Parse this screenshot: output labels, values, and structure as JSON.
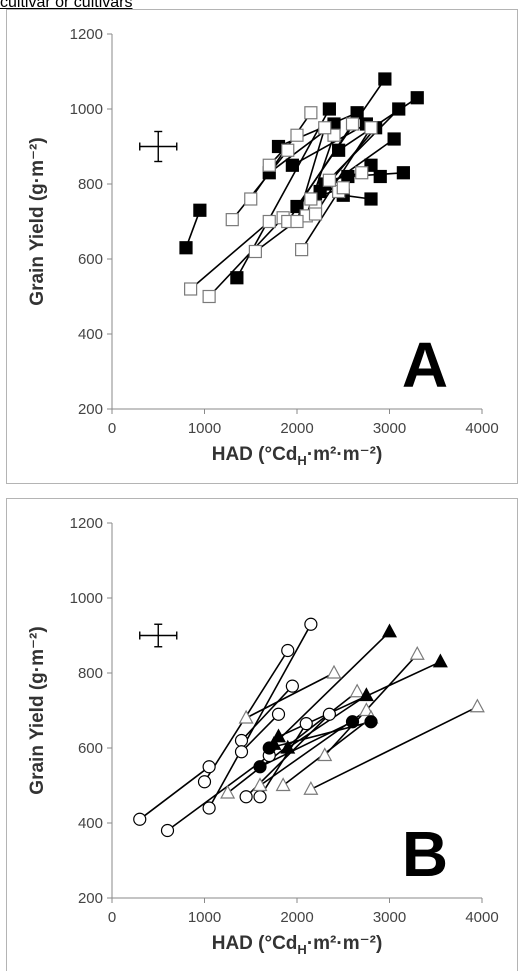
{
  "caption": "cultivar or cultivars",
  "chart_data": [
    {
      "type": "line",
      "panel_label": "A",
      "xlabel_main": "HAD (°Cd",
      "xlabel_sub": "H",
      "xlabel_rest": "·m²·m⁻²)",
      "ylabel": "Grain Yield (g·m⁻²)",
      "xlim": [
        0,
        4000
      ],
      "ylim": [
        200,
        1200
      ],
      "xticks": [
        0,
        1000,
        2000,
        3000,
        4000
      ],
      "yticks": [
        200,
        400,
        600,
        800,
        1000,
        1200
      ],
      "xticklabels": [
        "0",
        "1000",
        "2000",
        "3000",
        "4000"
      ],
      "yticklabels": [
        "200",
        "400",
        "600",
        "800",
        "1000",
        "1200"
      ],
      "grid": false,
      "legend": "none",
      "error_bar": {
        "x": 500,
        "y": 900,
        "xerr": 200,
        "yerr": 40
      },
      "series": [
        {
          "marker": "square-filled",
          "points": [
            [
              1350,
              550
            ],
            [
              2350,
              1000
            ]
          ]
        },
        {
          "marker": "square-filled",
          "points": [
            [
              2000,
              740
            ],
            [
              2950,
              1080
            ]
          ]
        },
        {
          "marker": "square-filled",
          "points": [
            [
              1700,
              830
            ],
            [
              2400,
              960
            ]
          ]
        },
        {
          "marker": "square-filled",
          "points": [
            [
              1800,
              900
            ],
            [
              2650,
              990
            ]
          ]
        },
        {
          "marker": "square-filled",
          "points": [
            [
              1950,
              850
            ],
            [
              2750,
              960
            ]
          ]
        },
        {
          "marker": "square-filled",
          "points": [
            [
              2300,
              800
            ],
            [
              3100,
              1000
            ]
          ]
        },
        {
          "marker": "square-filled",
          "points": [
            [
              2450,
              890
            ],
            [
              3300,
              1030
            ]
          ]
        },
        {
          "marker": "square-filled",
          "points": [
            [
              2200,
              760
            ],
            [
              2850,
              950
            ]
          ]
        },
        {
          "marker": "square-filled",
          "points": [
            [
              2250,
              780
            ],
            [
              3050,
              920
            ]
          ]
        },
        {
          "marker": "square-filled",
          "points": [
            [
              2550,
              820
            ],
            [
              3150,
              830
            ]
          ]
        },
        {
          "marker": "square-filled",
          "points": [
            [
              2800,
              850
            ],
            [
              2900,
              820
            ]
          ]
        },
        {
          "marker": "square-filled",
          "points": [
            [
              2500,
              770
            ],
            [
              2800,
              760
            ]
          ]
        },
        {
          "marker": "square-filled",
          "points": [
            [
              800,
              630
            ],
            [
              950,
              730
            ]
          ]
        },
        {
          "marker": "square-open",
          "points": [
            [
              850,
              520
            ],
            [
              1700,
              700
            ]
          ]
        },
        {
          "marker": "square-open",
          "points": [
            [
              1050,
              500
            ],
            [
              1850,
              710
            ]
          ]
        },
        {
          "marker": "square-open",
          "points": [
            [
              1300,
              705
            ],
            [
              1900,
              890
            ]
          ]
        },
        {
          "marker": "square-open",
          "points": [
            [
              1500,
              760
            ],
            [
              2150,
              990
            ]
          ]
        },
        {
          "marker": "square-open",
          "points": [
            [
              1550,
              620
            ],
            [
              2200,
              740
            ]
          ]
        },
        {
          "marker": "square-open",
          "points": [
            [
              1700,
              850
            ],
            [
              2000,
              930
            ]
          ]
        },
        {
          "marker": "square-open",
          "points": [
            [
              1900,
              700
            ],
            [
              2600,
              960
            ]
          ]
        },
        {
          "marker": "square-open",
          "points": [
            [
              2050,
              625
            ],
            [
              2450,
              780
            ]
          ]
        },
        {
          "marker": "square-open",
          "points": [
            [
              2100,
              715
            ],
            [
              2400,
              930
            ]
          ]
        },
        {
          "marker": "square-open",
          "points": [
            [
              2000,
              700
            ],
            [
              2300,
              950
            ]
          ]
        },
        {
          "marker": "square-open",
          "points": [
            [
              2200,
              720
            ],
            [
              2800,
              950
            ]
          ]
        },
        {
          "marker": "square-open",
          "points": [
            [
              2150,
              760
            ],
            [
              2500,
              790
            ]
          ]
        },
        {
          "marker": "square-open",
          "points": [
            [
              2350,
              810
            ],
            [
              2700,
              830
            ]
          ]
        }
      ]
    },
    {
      "type": "line",
      "panel_label": "B",
      "xlabel_main": "HAD (°Cd",
      "xlabel_sub": "H",
      "xlabel_rest": "·m²·m⁻²)",
      "ylabel": "Grain Yield (g·m⁻²)",
      "xlim": [
        0,
        4000
      ],
      "ylim": [
        200,
        1200
      ],
      "xticks": [
        0,
        1000,
        2000,
        3000,
        4000
      ],
      "yticks": [
        200,
        400,
        600,
        800,
        1000,
        1200
      ],
      "xticklabels": [
        "0",
        "1000",
        "2000",
        "3000",
        "4000"
      ],
      "yticklabels": [
        "200",
        "400",
        "600",
        "800",
        "1000",
        "1200"
      ],
      "grid": false,
      "legend": "none",
      "error_bar": {
        "x": 500,
        "y": 900,
        "xerr": 200,
        "yerr": 30
      },
      "series": [
        {
          "marker": "circle-open",
          "points": [
            [
              300,
              410
            ],
            [
              1050,
              550
            ]
          ]
        },
        {
          "marker": "circle-open",
          "points": [
            [
              1000,
              510
            ],
            [
              1900,
              860
            ]
          ]
        },
        {
          "marker": "circle-open",
          "points": [
            [
              1050,
              440
            ],
            [
              2150,
              930
            ]
          ]
        },
        {
          "marker": "circle-open",
          "points": [
            [
              600,
              380
            ],
            [
              1700,
              580
            ]
          ]
        },
        {
          "marker": "circle-open",
          "points": [
            [
              1400,
              620
            ],
            [
              1950,
              765
            ]
          ]
        },
        {
          "marker": "circle-open",
          "points": [
            [
              1400,
              590
            ],
            [
              1800,
              690
            ]
          ]
        },
        {
          "marker": "circle-open",
          "points": [
            [
              1450,
              470
            ],
            [
              2350,
              690
            ]
          ]
        },
        {
          "marker": "circle-open",
          "points": [
            [
              1600,
              470
            ],
            [
              2100,
              665
            ]
          ]
        },
        {
          "marker": "triangle-open",
          "points": [
            [
              1450,
              680
            ],
            [
              2400,
              800
            ]
          ]
        },
        {
          "marker": "triangle-open",
          "points": [
            [
              1250,
              480
            ],
            [
              2650,
              750
            ]
          ]
        },
        {
          "marker": "triangle-open",
          "points": [
            [
              1600,
              500
            ],
            [
              2750,
              700
            ]
          ]
        },
        {
          "marker": "triangle-open",
          "points": [
            [
              1850,
              500
            ],
            [
              2800,
              680
            ]
          ]
        },
        {
          "marker": "triangle-open",
          "points": [
            [
              2300,
              580
            ],
            [
              3300,
              850
            ]
          ]
        },
        {
          "marker": "triangle-open",
          "points": [
            [
              2150,
              490
            ],
            [
              3950,
              710
            ]
          ]
        },
        {
          "marker": "triangle-filled",
          "points": [
            [
              1750,
              610
            ],
            [
              3000,
              910
            ]
          ]
        },
        {
          "marker": "triangle-filled",
          "points": [
            [
              1800,
              630
            ],
            [
              3550,
              830
            ]
          ]
        },
        {
          "marker": "triangle-filled",
          "points": [
            [
              1900,
              600
            ],
            [
              2750,
              740
            ]
          ]
        },
        {
          "marker": "circle-filled",
          "points": [
            [
              1600,
              550
            ],
            [
              2600,
              670
            ]
          ]
        },
        {
          "marker": "circle-filled",
          "points": [
            [
              1700,
              600
            ],
            [
              2800,
              670
            ]
          ]
        }
      ]
    }
  ]
}
